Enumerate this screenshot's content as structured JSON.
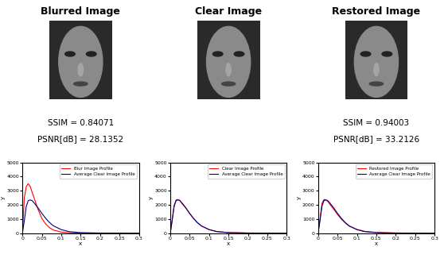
{
  "images": [
    {
      "title": "Blurred Image",
      "metrics": [
        "SSIM = 0.84071",
        "PSNR[dB] = 28.1352"
      ]
    },
    {
      "title": "Clear Image",
      "metrics": []
    },
    {
      "title": "Restored Image",
      "metrics": [
        "SSIM = 0.94003",
        "PSNR[dB] = 33.2126"
      ]
    }
  ],
  "chart_data": [
    {
      "type": "line",
      "x_label": "x",
      "y_label": "y",
      "x": [
        0,
        0.005,
        0.01,
        0.015,
        0.02,
        0.025,
        0.03,
        0.04,
        0.05,
        0.06,
        0.07,
        0.08,
        0.1,
        0.12,
        0.15,
        0.2,
        0.25,
        0.3
      ],
      "series": [
        {
          "name": "Blur Image Profile",
          "color": "#ff0000",
          "values": [
            0,
            2500,
            3300,
            3500,
            3300,
            2900,
            2500,
            1700,
            1050,
            650,
            380,
            220,
            80,
            30,
            8,
            2,
            0,
            0
          ]
        },
        {
          "name": "Average Clear Image Profile",
          "color": "#000080",
          "values": [
            0,
            900,
            1900,
            2300,
            2350,
            2300,
            2150,
            1800,
            1400,
            1050,
            750,
            520,
            250,
            110,
            40,
            10,
            3,
            0
          ]
        }
      ],
      "xlim": [
        0,
        0.3
      ],
      "xticks": [
        0,
        0.05,
        0.1,
        0.15,
        0.2,
        0.25,
        0.3
      ],
      "ylim": [
        0,
        5000
      ],
      "yticks": [
        0,
        1000,
        2000,
        3000,
        4000,
        5000
      ],
      "legend": "upper right"
    },
    {
      "type": "line",
      "x_label": "x",
      "y_label": "y",
      "x": [
        0,
        0.005,
        0.01,
        0.015,
        0.02,
        0.025,
        0.03,
        0.04,
        0.05,
        0.06,
        0.07,
        0.08,
        0.1,
        0.12,
        0.15,
        0.2,
        0.25,
        0.3
      ],
      "series": [
        {
          "name": "Clear Image Profile",
          "color": "#ff0000",
          "values": [
            0,
            950,
            1950,
            2350,
            2380,
            2300,
            2100,
            1780,
            1380,
            1030,
            740,
            510,
            260,
            120,
            45,
            12,
            4,
            0
          ]
        },
        {
          "name": "Average Clear Image Profile",
          "color": "#000080",
          "values": [
            0,
            900,
            1900,
            2300,
            2350,
            2300,
            2150,
            1800,
            1400,
            1050,
            750,
            520,
            250,
            110,
            40,
            10,
            3,
            0
          ]
        }
      ],
      "xlim": [
        0,
        0.3
      ],
      "xticks": [
        0,
        0.05,
        0.1,
        0.15,
        0.2,
        0.25,
        0.3
      ],
      "ylim": [
        0,
        5000
      ],
      "yticks": [
        0,
        1000,
        2000,
        3000,
        4000,
        5000
      ],
      "legend": "upper right"
    },
    {
      "type": "line",
      "x_label": "x",
      "y_label": "y",
      "x": [
        0,
        0.005,
        0.01,
        0.015,
        0.02,
        0.025,
        0.03,
        0.04,
        0.05,
        0.06,
        0.07,
        0.08,
        0.1,
        0.12,
        0.15,
        0.2,
        0.25,
        0.3
      ],
      "series": [
        {
          "name": "Restored Image Profile",
          "color": "#ff0000",
          "values": [
            0,
            1000,
            2100,
            2380,
            2350,
            2250,
            2050,
            1700,
            1320,
            990,
            720,
            500,
            270,
            130,
            55,
            15,
            5,
            1
          ]
        },
        {
          "name": "Average Clear Image Profile",
          "color": "#000080",
          "values": [
            0,
            900,
            1900,
            2300,
            2350,
            2300,
            2150,
            1800,
            1400,
            1050,
            750,
            520,
            250,
            110,
            40,
            10,
            3,
            0
          ]
        }
      ],
      "xlim": [
        0,
        0.3
      ],
      "xticks": [
        0,
        0.05,
        0.1,
        0.15,
        0.2,
        0.25,
        0.3
      ],
      "ylim": [
        0,
        5000
      ],
      "yticks": [
        0,
        1000,
        2000,
        3000,
        4000,
        5000
      ],
      "legend": "upper right"
    }
  ]
}
